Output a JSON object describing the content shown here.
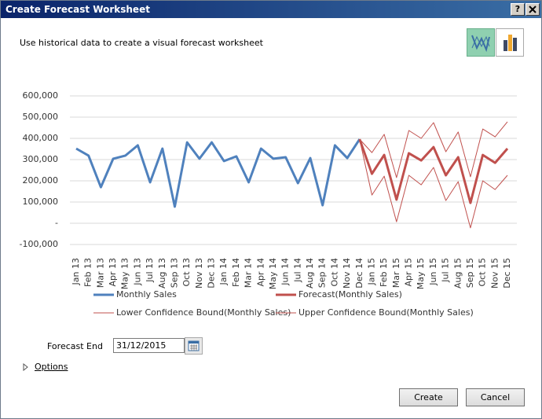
{
  "dialog": {
    "title": "Create Forecast Worksheet",
    "help_button": "?",
    "description": "Use historical data to create a visual forecast worksheet",
    "forecast_end_label": "Forecast End",
    "forecast_end_value": "31/12/2015",
    "options_label": "Options",
    "create_button": "Create",
    "cancel_button": "Cancel"
  },
  "chart_data": {
    "type": "line",
    "categories": [
      "Jan 13",
      "Feb 13",
      "Mar 13",
      "Apr 13",
      "May 13",
      "Jun 13",
      "Jul 13",
      "Aug 13",
      "Sep 13",
      "Oct 13",
      "Nov 13",
      "Dec 13",
      "Jan 14",
      "Feb 14",
      "Mar 14",
      "Apr 14",
      "May 14",
      "Jun 14",
      "Jul 14",
      "Aug 14",
      "Sep 14",
      "Oct 14",
      "Nov 14",
      "Dec 14",
      "Jan 15",
      "Feb 15",
      "Mar 15",
      "Apr 15",
      "May 15",
      "Jun 15",
      "Jul 15",
      "Aug 15",
      "Sep 15",
      "Oct 15",
      "Nov 15",
      "Dec 15"
    ],
    "series": [
      {
        "name": "Monthly Sales",
        "color": "#4f81bd",
        "width": 3,
        "values": [
          352000,
          319000,
          170000,
          304000,
          319000,
          367000,
          193000,
          352000,
          78000,
          381000,
          304000,
          381000,
          293000,
          315000,
          193000,
          352000,
          304000,
          311000,
          189000,
          307000,
          85000,
          367000,
          307000,
          396000,
          null,
          null,
          null,
          null,
          null,
          null,
          null,
          null,
          null,
          null,
          null,
          null
        ]
      },
      {
        "name": "Forecast(Monthly Sales)",
        "color": "#c0504d",
        "width": 3,
        "values": [
          null,
          null,
          null,
          null,
          null,
          null,
          null,
          null,
          null,
          null,
          null,
          null,
          null,
          null,
          null,
          null,
          null,
          null,
          null,
          null,
          null,
          null,
          null,
          396000,
          233000,
          322000,
          111000,
          330000,
          296000,
          359000,
          226000,
          311000,
          96000,
          322000,
          285000,
          352000
        ]
      },
      {
        "name": "Lower Confidence Bound(Monthly Sales)",
        "color": "#c0504d",
        "width": 1,
        "values": [
          null,
          null,
          null,
          null,
          null,
          null,
          null,
          null,
          null,
          null,
          null,
          null,
          null,
          null,
          null,
          null,
          null,
          null,
          null,
          null,
          null,
          null,
          null,
          396000,
          133000,
          222000,
          7000,
          226000,
          181000,
          263000,
          107000,
          196000,
          -22000,
          200000,
          159000,
          226000
        ]
      },
      {
        "name": "Upper Confidence Bound(Monthly Sales)",
        "color": "#c0504d",
        "width": 1,
        "values": [
          null,
          null,
          null,
          null,
          null,
          null,
          null,
          null,
          null,
          null,
          null,
          null,
          null,
          null,
          null,
          null,
          null,
          null,
          null,
          null,
          null,
          null,
          null,
          396000,
          333000,
          419000,
          215000,
          437000,
          400000,
          474000,
          337000,
          430000,
          219000,
          444000,
          407000,
          478000
        ]
      }
    ],
    "ylim": [
      -100000,
      600000
    ],
    "yticks": [
      {
        "value": -100000,
        "label": "-100,000"
      },
      {
        "value": 0,
        "label": "-"
      },
      {
        "value": 100000,
        "label": "100,000"
      },
      {
        "value": 200000,
        "label": "200,000"
      },
      {
        "value": 300000,
        "label": "300,000"
      },
      {
        "value": 400000,
        "label": "400,000"
      },
      {
        "value": 500000,
        "label": "500,000"
      },
      {
        "value": 600000,
        "label": "600,000"
      }
    ],
    "grid": true
  }
}
